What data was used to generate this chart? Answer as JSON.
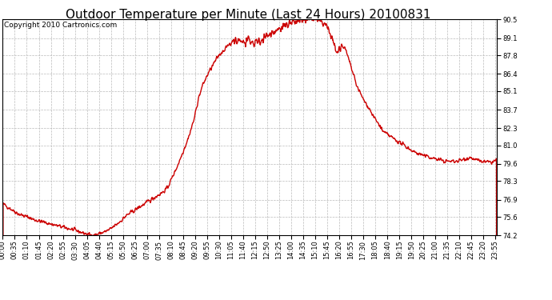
{
  "title": "Outdoor Temperature per Minute (Last 24 Hours) 20100831",
  "copyright_text": "Copyright 2010 Cartronics.com",
  "line_color": "#cc0000",
  "background_color": "#ffffff",
  "plot_bg_color": "#ffffff",
  "grid_color": "#bbbbbb",
  "grid_style": "--",
  "yticks": [
    74.2,
    75.6,
    76.9,
    78.3,
    79.6,
    81.0,
    82.3,
    83.7,
    85.1,
    86.4,
    87.8,
    89.1,
    90.5
  ],
  "ymin": 74.2,
  "ymax": 90.5,
  "title_fontsize": 11,
  "copyright_fontsize": 6.5,
  "tick_fontsize": 6,
  "line_width": 1.0,
  "x_tick_labels": [
    "00:00",
    "00:35",
    "01:10",
    "01:45",
    "02:20",
    "02:55",
    "03:30",
    "04:05",
    "04:40",
    "05:15",
    "05:50",
    "06:25",
    "07:00",
    "07:35",
    "08:10",
    "08:45",
    "09:20",
    "09:55",
    "10:30",
    "11:05",
    "11:40",
    "12:15",
    "12:50",
    "13:25",
    "14:00",
    "14:35",
    "15:10",
    "15:45",
    "16:20",
    "16:55",
    "17:30",
    "18:05",
    "18:40",
    "19:15",
    "19:50",
    "20:25",
    "21:00",
    "21:35",
    "22:10",
    "22:45",
    "23:20",
    "23:55"
  ],
  "base_curve": [
    [
      0.0,
      76.6
    ],
    [
      0.3,
      76.3
    ],
    [
      0.5,
      76.1
    ],
    [
      0.8,
      75.8
    ],
    [
      1.0,
      75.7
    ],
    [
      1.3,
      75.55
    ],
    [
      1.5,
      75.4
    ],
    [
      2.0,
      75.2
    ],
    [
      2.5,
      75.0
    ],
    [
      3.0,
      74.8
    ],
    [
      3.5,
      74.6
    ],
    [
      4.0,
      74.35
    ],
    [
      4.3,
      74.22
    ],
    [
      4.6,
      74.3
    ],
    [
      5.0,
      74.5
    ],
    [
      5.2,
      74.65
    ],
    [
      5.5,
      75.0
    ],
    [
      5.8,
      75.4
    ],
    [
      6.0,
      75.7
    ],
    [
      6.5,
      76.2
    ],
    [
      7.0,
      76.7
    ],
    [
      7.3,
      77.0
    ],
    [
      7.5,
      77.2
    ],
    [
      7.8,
      77.5
    ],
    [
      8.0,
      77.8
    ],
    [
      8.5,
      79.5
    ],
    [
      9.0,
      81.5
    ],
    [
      9.3,
      83.0
    ],
    [
      9.5,
      84.5
    ],
    [
      9.7,
      85.5
    ],
    [
      10.0,
      86.5
    ],
    [
      10.3,
      87.3
    ],
    [
      10.5,
      87.8
    ],
    [
      10.8,
      88.3
    ],
    [
      11.0,
      88.6
    ],
    [
      11.2,
      88.8
    ],
    [
      11.5,
      88.9
    ],
    [
      11.7,
      88.8
    ],
    [
      12.0,
      88.85
    ],
    [
      12.2,
      88.7
    ],
    [
      12.5,
      88.9
    ],
    [
      12.8,
      89.2
    ],
    [
      13.0,
      89.4
    ],
    [
      13.3,
      89.7
    ],
    [
      13.5,
      89.9
    ],
    [
      13.8,
      90.1
    ],
    [
      14.0,
      90.2
    ],
    [
      14.2,
      90.3
    ],
    [
      14.4,
      90.35
    ],
    [
      14.6,
      90.4
    ],
    [
      14.8,
      90.45
    ],
    [
      15.0,
      90.5
    ],
    [
      15.1,
      90.48
    ],
    [
      15.2,
      90.45
    ],
    [
      15.3,
      90.4
    ],
    [
      15.5,
      90.3
    ],
    [
      15.7,
      90.1
    ],
    [
      15.8,
      89.8
    ],
    [
      16.0,
      89.0
    ],
    [
      16.1,
      88.5
    ],
    [
      16.2,
      88.2
    ],
    [
      16.3,
      88.0
    ],
    [
      16.4,
      88.3
    ],
    [
      16.5,
      88.5
    ],
    [
      16.6,
      88.4
    ],
    [
      16.7,
      88.0
    ],
    [
      16.8,
      87.5
    ],
    [
      17.0,
      86.5
    ],
    [
      17.2,
      85.5
    ],
    [
      17.5,
      84.5
    ],
    [
      17.8,
      83.8
    ],
    [
      18.0,
      83.2
    ],
    [
      18.3,
      82.5
    ],
    [
      18.5,
      82.0
    ],
    [
      19.0,
      81.5
    ],
    [
      19.5,
      81.0
    ],
    [
      20.0,
      80.5
    ],
    [
      20.5,
      80.2
    ],
    [
      21.0,
      80.0
    ],
    [
      21.5,
      79.8
    ],
    [
      22.0,
      79.8
    ],
    [
      22.3,
      79.9
    ],
    [
      22.5,
      80.0
    ],
    [
      22.7,
      80.1
    ],
    [
      23.0,
      79.9
    ],
    [
      23.2,
      79.8
    ],
    [
      23.5,
      79.75
    ],
    [
      23.7,
      79.7
    ],
    [
      24.0,
      79.9
    ]
  ]
}
